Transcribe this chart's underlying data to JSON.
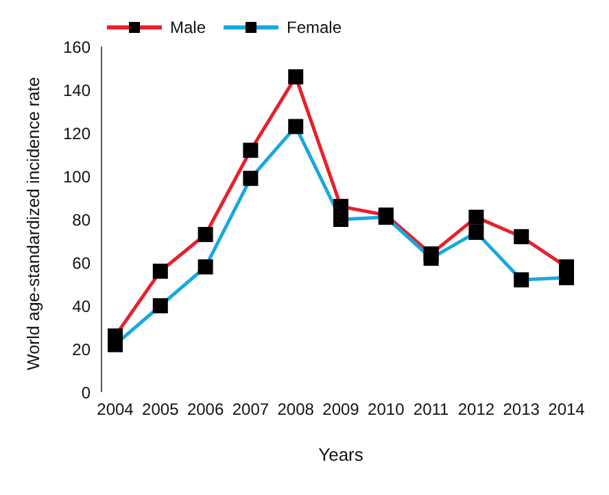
{
  "chart_data": {
    "type": "line",
    "xlabel": "Years",
    "ylabel": "World age-standardized incidence rate",
    "categories": [
      "2004",
      "2005",
      "2006",
      "2007",
      "2008",
      "2009",
      "2010",
      "2011",
      "2012",
      "2013",
      "2014"
    ],
    "series": [
      {
        "name": "Male",
        "color": "#e8202a",
        "values": [
          26,
          56,
          73,
          112,
          146,
          86,
          82,
          64,
          81,
          72,
          58
        ]
      },
      {
        "name": "Female",
        "color": "#18a8e0",
        "values": [
          22,
          40,
          58,
          99,
          123,
          80,
          81,
          62,
          74,
          52,
          53
        ]
      }
    ],
    "ylim": [
      0,
      160
    ],
    "yticks": [
      0,
      20,
      40,
      60,
      80,
      100,
      120,
      140,
      160
    ],
    "grid": false,
    "legend": "top left",
    "marker": "square",
    "line_style": "solid"
  }
}
